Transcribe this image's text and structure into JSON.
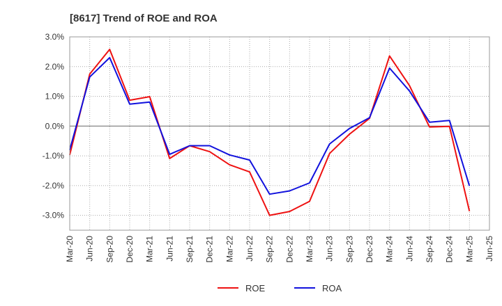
{
  "chart_data": {
    "type": "line",
    "title": "[8617]  Trend of ROE and ROA",
    "xlabel": "",
    "ylabel": "",
    "x": [
      "Mar-20",
      "Jun-20",
      "Sep-20",
      "Dec-20",
      "Mar-21",
      "Jun-21",
      "Sep-21",
      "Dec-21",
      "Mar-22",
      "Jun-22",
      "Sep-22",
      "Dec-22",
      "Mar-23",
      "Jun-23",
      "Sep-23",
      "Dec-23",
      "Mar-24",
      "Jun-24",
      "Sep-24",
      "Dec-24",
      "Mar-25",
      "Jun-25"
    ],
    "y_ticks": [
      "3.0%",
      "2.0%",
      "1.0%",
      "0.0%",
      "-1.0%",
      "-2.0%",
      "-3.0%"
    ],
    "ylim": [
      -3.5,
      3.0
    ],
    "grid": true,
    "legend_position": "bottom",
    "series": [
      {
        "name": "ROE",
        "color": "#ee1111",
        "values": [
          -0.97,
          1.75,
          2.58,
          0.87,
          0.99,
          -1.09,
          -0.66,
          -0.86,
          -1.3,
          -1.54,
          -3.0,
          -2.87,
          -2.53,
          -0.92,
          -0.27,
          0.26,
          2.36,
          1.36,
          -0.03,
          -0.01,
          -2.86,
          null
        ]
      },
      {
        "name": "ROA",
        "color": "#1111dd",
        "values": [
          -0.8,
          1.65,
          2.3,
          0.74,
          0.81,
          -0.95,
          -0.66,
          -0.66,
          -0.97,
          -1.14,
          -2.29,
          -2.18,
          -1.91,
          -0.6,
          -0.08,
          0.28,
          1.95,
          1.18,
          0.13,
          0.19,
          -2.01,
          null
        ]
      }
    ]
  }
}
